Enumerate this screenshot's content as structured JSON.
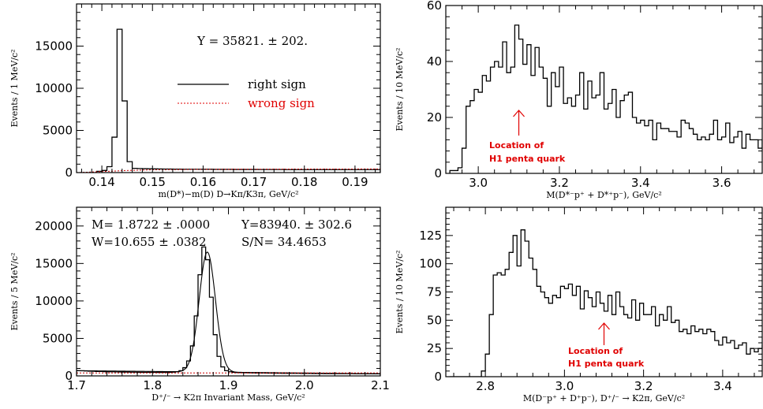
{
  "chart_data": [
    {
      "type": "histogram",
      "xlabel": "m(D*)−m(D) D→Kπ/K3π, GeV/c²",
      "ylabel": "Events / 1 MeV/c²",
      "xlim": [
        0.135,
        0.195
      ],
      "ylim": [
        0,
        20000
      ],
      "xticks": [
        0.14,
        0.15,
        0.16,
        0.17,
        0.18,
        0.19
      ],
      "xtick_labels": [
        "0.14",
        "0.15",
        "0.16",
        "0.17",
        "0.18",
        "0.19"
      ],
      "yticks": [
        0,
        5000,
        10000,
        15000
      ],
      "ytick_labels": [
        "0",
        "5000",
        "10000",
        "15000"
      ],
      "annotations": [
        "Y  =  35821.  ±  202."
      ],
      "legend": [
        {
          "label": "right sign",
          "color": "#000000",
          "style": "solid"
        },
        {
          "label": "wrong sign",
          "color": "#e00000",
          "style": "dashed"
        }
      ],
      "series": [
        {
          "name": "right sign",
          "bin_edges_start": 0.139,
          "bin_width": 0.001,
          "values": [
            150,
            250,
            700,
            4200,
            17000,
            8500,
            1300,
            500,
            480,
            460,
            450,
            440,
            430,
            420,
            420,
            410,
            410,
            400,
            400,
            400,
            390,
            390,
            390,
            380,
            380,
            380,
            380,
            370,
            370,
            370,
            370,
            370,
            360,
            360,
            360,
            360,
            360,
            350,
            350,
            350,
            350,
            350,
            350,
            350,
            350,
            350,
            350,
            350,
            350,
            350,
            350,
            350,
            350,
            350,
            350,
            350
          ]
        },
        {
          "name": "wrong sign",
          "x": [
            0.135,
            0.14,
            0.145,
            0.15,
            0.16,
            0.17,
            0.18,
            0.195
          ],
          "values": [
            0,
            120,
            250,
            330,
            380,
            400,
            420,
            430
          ]
        }
      ]
    },
    {
      "type": "histogram",
      "xlabel": "M(D*⁻p⁺ + D*⁺p⁻), GeV/c²",
      "ylabel": "Events / 10 MeV/c²",
      "xlim": [
        2.92,
        3.7
      ],
      "ylim": [
        0,
        60
      ],
      "xticks": [
        3.0,
        3.2,
        3.4,
        3.6
      ],
      "xtick_labels": [
        "3.0",
        "3.2",
        "3.4",
        "3.6"
      ],
      "yticks": [
        0,
        20,
        40,
        60
      ],
      "ytick_labels": [
        "0",
        "20",
        "40",
        "60"
      ],
      "annotation_text": [
        "Location of",
        "H1 penta quark"
      ],
      "annotation_arrow_x": 3.1,
      "series": [
        {
          "name": "",
          "bin_edges_start": 2.93,
          "bin_width": 0.01,
          "values": [
            1,
            1,
            2,
            9,
            24,
            26,
            30,
            29,
            35,
            33,
            38,
            40,
            38,
            47,
            36,
            38,
            53,
            48,
            39,
            46,
            35,
            45,
            38,
            34,
            24,
            36,
            31,
            38,
            25,
            27,
            24,
            28,
            36,
            23,
            33,
            27,
            28,
            36,
            23,
            25,
            30,
            20,
            26,
            28,
            29,
            20,
            18,
            19,
            17,
            19,
            12,
            18,
            16,
            16,
            15,
            15,
            13,
            19,
            18,
            16,
            14,
            12,
            13,
            12,
            14,
            19,
            12,
            13,
            18,
            11,
            13,
            15,
            9,
            14,
            12,
            12,
            9,
            12,
            12,
            13
          ]
        }
      ]
    },
    {
      "type": "histogram",
      "xlabel": "D⁺/⁻ → K2π Invariant Mass, GeV/c²",
      "ylabel": "Events / 5 MeV/c²",
      "xlim": [
        1.7,
        2.1
      ],
      "ylim": [
        0,
        22500
      ],
      "xticks": [
        1.7,
        1.8,
        1.9,
        2.0,
        2.1
      ],
      "xtick_labels": [
        "1.7",
        "1.8",
        "1.9",
        "2.0",
        "2.1"
      ],
      "yticks": [
        0,
        5000,
        10000,
        15000,
        20000
      ],
      "ytick_labels": [
        "0",
        "5000",
        "10000",
        "15000",
        "20000"
      ],
      "annotations": [
        "M=  1.8722  ±  .0000",
        "Y=83940.  ±  302.6",
        "W=10.655  ±  .0382",
        "S/N=  34.4653"
      ],
      "series": [
        {
          "name": "",
          "bin_edges_start": 1.7,
          "bin_width": 0.005,
          "values": [
            700,
            680,
            660,
            640,
            620,
            600,
            590,
            570,
            560,
            550,
            540,
            530,
            520,
            510,
            500,
            500,
            490,
            480,
            480,
            470,
            470,
            460,
            460,
            470,
            480,
            500,
            560,
            700,
            1100,
            2000,
            4000,
            8000,
            13500,
            17200,
            15500,
            10500,
            5500,
            2600,
            1200,
            700,
            550,
            480,
            450,
            430,
            420,
            410,
            400,
            390,
            390,
            380,
            370,
            370,
            360,
            360,
            350,
            350,
            340,
            340,
            340,
            330,
            330,
            330,
            320,
            320,
            320,
            310,
            310,
            310,
            300,
            300,
            300,
            300,
            300,
            290,
            290,
            290,
            290,
            290,
            280,
            280
          ]
        },
        {
          "name": "",
          "fit_mean": 1.8722,
          "fit_sigma": 0.0107,
          "fit_peak": 16000
        },
        {
          "name": "",
          "background": [
            [
              1.7,
              400
            ],
            [
              2.1,
              400
            ]
          ]
        }
      ]
    },
    {
      "type": "histogram",
      "xlabel": "M(D⁻p⁺ + D⁺p⁻), D⁺/⁻ → K2π, GeV/c²",
      "ylabel": "Events / 10 MeV/c²",
      "xlim": [
        2.7,
        3.5
      ],
      "ylim": [
        0,
        150
      ],
      "xticks": [
        2.8,
        3.0,
        3.2,
        3.4
      ],
      "xtick_labels": [
        "2.8",
        "3.0",
        "3.2",
        "3.4"
      ],
      "yticks": [
        0,
        25,
        50,
        75,
        100,
        125
      ],
      "ytick_labels": [
        "0",
        "25",
        "50",
        "75",
        "100",
        "125"
      ],
      "annotation_text": [
        "Location of",
        "H1 penta quark"
      ],
      "annotation_arrow_x": 3.1,
      "series": [
        {
          "name": "",
          "bin_edges_start": 2.71,
          "bin_width": 0.01,
          "values": [
            0,
            0,
            0,
            0,
            0,
            0,
            0,
            0,
            5,
            20,
            55,
            90,
            92,
            90,
            95,
            110,
            125,
            98,
            130,
            120,
            105,
            95,
            80,
            75,
            70,
            65,
            72,
            70,
            80,
            78,
            82,
            72,
            80,
            60,
            76,
            70,
            62,
            75,
            65,
            58,
            72,
            55,
            75,
            62,
            55,
            52,
            68,
            50,
            65,
            55,
            55,
            62,
            45,
            55,
            50,
            62,
            48,
            50,
            40,
            42,
            38,
            45,
            40,
            42,
            38,
            42,
            40,
            32,
            28,
            35,
            30,
            32,
            25,
            28,
            30,
            20,
            25,
            22,
            25,
            28
          ]
        }
      ]
    }
  ]
}
